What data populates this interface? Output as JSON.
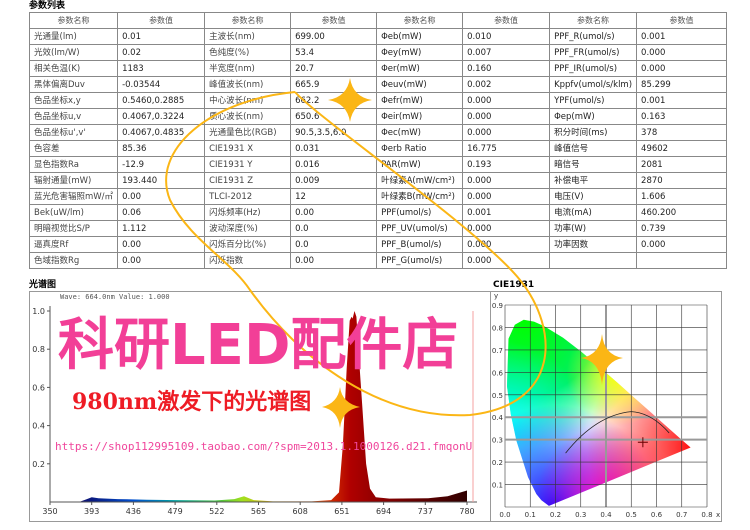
{
  "params_section": {
    "title": "参数列表",
    "headers": [
      "参数名称",
      "参数值",
      "参数名称",
      "参数值",
      "参数名称",
      "参数值",
      "参数名称",
      "参数值"
    ],
    "rows": [
      [
        "光通量(lm)",
        "0.01",
        "主波长(nm)",
        "699.00",
        "Φeb(mW)",
        "0.010",
        "PPF_R(umol/s)",
        "0.001"
      ],
      [
        "光效(lm/W)",
        "0.02",
        "色纯度(%)",
        "53.4",
        "Φey(mW)",
        "0.007",
        "PPF_FR(umol/s)",
        "0.000"
      ],
      [
        "相关色温(K)",
        "1183",
        "半宽度(nm)",
        "20.7",
        "Φer(mW)",
        "0.160",
        "PPF_IR(umol/s)",
        "0.000"
      ],
      [
        "黑体偏离Duv",
        "-0.03544",
        "峰值波长(nm)",
        "665.9",
        "Φeuv(mW)",
        "0.002",
        "Kppfv(umol/s/klm)",
        "85.299"
      ],
      [
        "色品坐标x,y",
        "0.5460,0.2885",
        "中心波长(nm)",
        "662.2",
        "Φefr(mW)",
        "0.000",
        "YPF(umol/s)",
        "0.001"
      ],
      [
        "色品坐标u,v",
        "0.4067,0.3224",
        "质心波长(nm)",
        "650.6",
        "Φeir(mW)",
        "0.000",
        "Φep(mW)",
        "0.163"
      ],
      [
        "色品坐标u',v'",
        "0.4067,0.4835",
        "光通量色比(RGB)",
        "90.5,3.5,6.0",
        "Φec(mW)",
        "0.000",
        "积分时间(ms)",
        "378"
      ],
      [
        "色容差",
        "85.36",
        "CIE1931 X",
        "0.031",
        "Φerb Ratio",
        "16.775",
        "峰值信号",
        "49602"
      ],
      [
        "显色指数Ra",
        "-12.9",
        "CIE1931 Y",
        "0.016",
        "PAR(mW)",
        "0.193",
        "暗信号",
        "2081"
      ],
      [
        "辐射通量(mW)",
        "193.440",
        "CIE1931 Z",
        "0.009",
        "叶绿素A(mW/cm²)",
        "0.000",
        "补偿电平",
        "2870"
      ],
      [
        "蓝光危害辐照mW/㎡",
        "0.00",
        "TLCI-2012",
        "12",
        "叶绿素B(mW/cm²)",
        "0.000",
        "电压(V)",
        "1.606"
      ],
      [
        "Bek(uW/lm)",
        "0.06",
        "闪烁频率(Hz)",
        "0.00",
        "PPF(umol/s)",
        "0.001",
        "电流(mA)",
        "460.200"
      ],
      [
        "明暗视觉比S/P",
        "1.112",
        "波动深度(%)",
        "0.0",
        "PPF_UV(umol/s)",
        "0.000",
        "功率(W)",
        "0.739"
      ],
      [
        "逼真度Rf",
        "0.00",
        "闪烁百分比(%)",
        "0.0",
        "PPF_B(umol/s)",
        "0.000",
        "功率因数",
        "0.000"
      ],
      [
        "色域指数Rg",
        "0.00",
        "闪烁指数",
        "0.00",
        "PPF_G(umol/s)",
        "0.000",
        "",
        ""
      ]
    ]
  },
  "spectrum_section": {
    "title": "光谱图",
    "readout": "Wave: 664.0nm Value: 1.000"
  },
  "cie_section": {
    "title": "CIE1931"
  },
  "watermarks": {
    "shop_name": "科研LED配件店",
    "url": "https://shop112995109.taobao.com/?spm=2013.1.1000126.d21.fmqonU",
    "caption": "980nm激发下的光谱图"
  },
  "colors": {
    "watermark_pink": "#f23f97",
    "caption_red": "#ee1c25",
    "accent_gold": "#fbb615",
    "peak_red": "#b00000"
  },
  "chart_data": [
    {
      "type": "area",
      "xlim": [
        350,
        780
      ],
      "ylim": [
        0,
        1.0
      ],
      "x_ticks": [
        350,
        393,
        436,
        479,
        522,
        565,
        608,
        651,
        694,
        737,
        780
      ],
      "y_ticks": [
        0.2,
        0.4,
        0.6,
        0.8,
        1.0
      ],
      "points": [
        [
          350,
          0
        ],
        [
          380,
          0
        ],
        [
          388,
          0.015
        ],
        [
          393,
          0.025
        ],
        [
          400,
          0.02
        ],
        [
          420,
          0.015
        ],
        [
          450,
          0.012
        ],
        [
          480,
          0.01
        ],
        [
          520,
          0.008
        ],
        [
          540,
          0.015
        ],
        [
          550,
          0.03
        ],
        [
          560,
          0.01
        ],
        [
          580,
          0.003
        ],
        [
          620,
          0.003
        ],
        [
          640,
          0.01
        ],
        [
          648,
          0.05
        ],
        [
          652,
          0.3
        ],
        [
          656,
          0.7
        ],
        [
          659,
          0.95
        ],
        [
          661,
          0.97
        ],
        [
          662,
          0.96
        ],
        [
          664,
          1.0
        ],
        [
          666,
          0.97
        ],
        [
          668,
          0.8
        ],
        [
          672,
          0.5
        ],
        [
          676,
          0.2
        ],
        [
          680,
          0.07
        ],
        [
          686,
          0.025
        ],
        [
          700,
          0.018
        ],
        [
          740,
          0.02
        ],
        [
          760,
          0.03
        ],
        [
          770,
          0.045
        ],
        [
          780,
          0.06
        ]
      ]
    },
    {
      "type": "scatter",
      "xlabel": "x",
      "ylabel": "y",
      "xlim": [
        0,
        0.8
      ],
      "ylim": [
        0,
        0.9
      ],
      "x_ticks": [
        "0.0",
        "0.1",
        "0.2",
        "0.3",
        "0.4",
        "0.5",
        "0.6",
        "0.7",
        "0.8"
      ],
      "y_ticks": [
        "0.1",
        "0.2",
        "0.3",
        "0.4",
        "0.5",
        "0.6",
        "0.7",
        "0.8",
        "0.9"
      ],
      "point": {
        "x": 0.546,
        "y": 0.2885
      }
    }
  ]
}
